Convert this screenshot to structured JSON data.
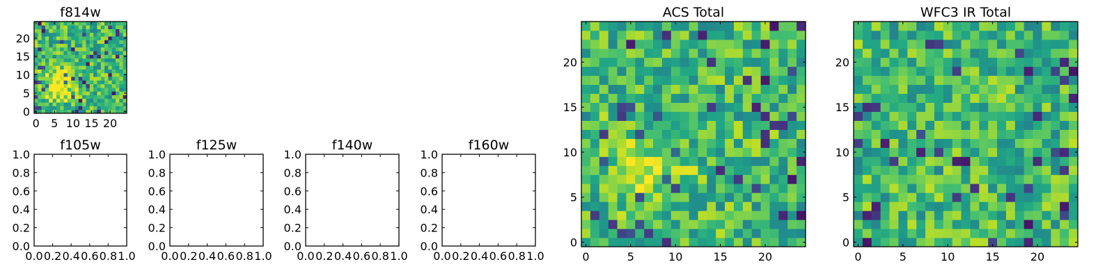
{
  "chart_data": [
    {
      "type": "heatmap",
      "title": "f814w",
      "xlim": [
        -0.5,
        24.5
      ],
      "ylim": [
        -0.5,
        24.5
      ],
      "xticks": [
        0,
        5,
        10,
        15,
        20
      ],
      "yticks": [
        0,
        5,
        10,
        15,
        20
      ],
      "grid": false,
      "colormap": "viridis",
      "value_range": [
        0,
        1
      ],
      "values": []
    },
    {
      "type": "empty",
      "title": "f105w",
      "xlim": [
        0.0,
        1.0
      ],
      "ylim": [
        0.0,
        1.0
      ],
      "xticks": [
        "0.0",
        "0.2",
        "0.4",
        "0.6",
        "0.8",
        "1.0"
      ],
      "yticks": [
        "0.0",
        "0.2",
        "0.4",
        "0.6",
        "0.8",
        "1.0"
      ],
      "grid": false
    },
    {
      "type": "empty",
      "title": "f125w",
      "xlim": [
        0.0,
        1.0
      ],
      "ylim": [
        0.0,
        1.0
      ],
      "xticks": [
        "0.0",
        "0.2",
        "0.4",
        "0.6",
        "0.8",
        "1.0"
      ],
      "yticks": [
        "0.0",
        "0.2",
        "0.4",
        "0.6",
        "0.8",
        "1.0"
      ],
      "grid": false
    },
    {
      "type": "empty",
      "title": "f140w",
      "xlim": [
        0.0,
        1.0
      ],
      "ylim": [
        0.0,
        1.0
      ],
      "xticks": [
        "0.0",
        "0.2",
        "0.4",
        "0.6",
        "0.8",
        "1.0"
      ],
      "yticks": [
        "0.0",
        "0.2",
        "0.4",
        "0.6",
        "0.8",
        "1.0"
      ],
      "grid": false
    },
    {
      "type": "empty",
      "title": "f160w",
      "xlim": [
        0.0,
        1.0
      ],
      "ylim": [
        0.0,
        1.0
      ],
      "xticks": [
        "0.0",
        "0.2",
        "0.4",
        "0.6",
        "0.8",
        "1.0"
      ],
      "yticks": [
        "0.0",
        "0.2",
        "0.4",
        "0.6",
        "0.8",
        "1.0"
      ],
      "grid": false
    },
    {
      "type": "heatmap",
      "title": "ACS Total",
      "xlim": [
        -0.5,
        24.5
      ],
      "ylim": [
        -0.5,
        24.5
      ],
      "xticks": [
        0,
        5,
        10,
        15,
        20
      ],
      "yticks": [
        0,
        5,
        10,
        15,
        20
      ],
      "grid": false,
      "colormap": "viridis",
      "value_range": [
        0,
        1
      ],
      "values": []
    },
    {
      "type": "heatmap",
      "title": "WFC3 IR Total",
      "xlim": [
        -0.5,
        24.5
      ],
      "ylim": [
        -0.5,
        24.5
      ],
      "xticks": [
        0,
        5,
        10,
        15,
        20
      ],
      "yticks": [
        0,
        5,
        10,
        15,
        20
      ],
      "grid": false,
      "colormap": "viridis",
      "value_range": [
        0,
        1
      ],
      "values": []
    }
  ]
}
